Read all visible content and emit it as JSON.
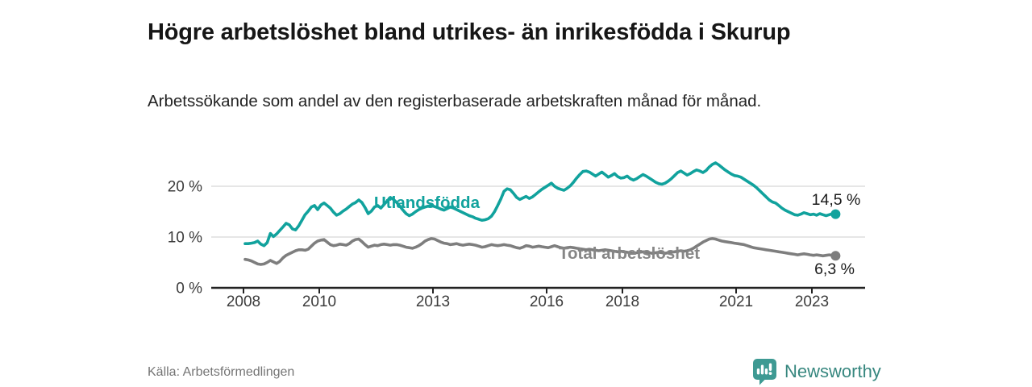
{
  "header": {
    "title": "Högre arbetslöshet bland utrikes- än inrikesfödda i Skurup",
    "subtitle": "Arbetssökande som andel av den registerbaserade arbetskraften månad för månad."
  },
  "footer": {
    "source": "Källa: Arbetsförmedlingen",
    "brand": "Newsworthy"
  },
  "colors": {
    "series_foreign_born": "#11a29d",
    "series_total": "#7e7e7e",
    "series_total_label": "#868686",
    "axis": "#222222",
    "axis_text": "#3c3c3c",
    "gridline": "#d8d8d8",
    "value_label": "#1a1a1a",
    "brand_teal": "#3e9a93"
  },
  "chart_data": {
    "type": "line",
    "title": "Högre arbetslöshet bland utrikes- än inrikesfödda i Skurup",
    "subtitle": "Arbetssökande som andel av den registerbaserade arbetskraften månad för månad.",
    "frequency": "monthly",
    "x_start": "2008-01",
    "x_end": "2023-08",
    "xlim": [
      2007.15,
      2024.4
    ],
    "ylim": [
      0,
      26
    ],
    "grid": "horizontal",
    "legend_position": "inline-labels",
    "x_ticks": [
      {
        "value": 2008,
        "label": "2008"
      },
      {
        "value": 2010,
        "label": "2010"
      },
      {
        "value": 2013,
        "label": "2013"
      },
      {
        "value": 2016,
        "label": "2016"
      },
      {
        "value": 2018,
        "label": "2018"
      },
      {
        "value": 2021,
        "label": "2021"
      },
      {
        "value": 2023,
        "label": "2023"
      }
    ],
    "y_ticks": [
      {
        "value": 0,
        "label": "0 %"
      },
      {
        "value": 10,
        "label": "10 %"
      },
      {
        "value": 20,
        "label": "20 %"
      }
    ],
    "series": [
      {
        "name": "Utlandsfödda",
        "color": "#11a29d",
        "end_label": "14,5 %",
        "last_value": 14.5,
        "values": [
          8.7,
          8.7,
          8.8,
          8.9,
          9.2,
          8.6,
          8.3,
          8.9,
          10.7,
          10.1,
          10.6,
          11.3,
          12.0,
          12.7,
          12.4,
          11.6,
          11.4,
          12.2,
          13.3,
          14.4,
          15.1,
          15.9,
          16.2,
          15.4,
          16.3,
          16.7,
          16.2,
          15.7,
          14.9,
          14.3,
          14.6,
          15.1,
          15.5,
          16.0,
          16.5,
          16.8,
          17.3,
          16.8,
          15.8,
          14.6,
          15.1,
          15.9,
          16.2,
          15.7,
          16.4,
          17.1,
          17.8,
          17.4,
          16.8,
          16.1,
          15.3,
          14.6,
          14.2,
          14.5,
          15.0,
          15.4,
          15.7,
          15.9,
          16.1,
          16.2,
          16.0,
          15.8,
          15.5,
          15.3,
          15.6,
          15.9,
          15.7,
          15.4,
          15.1,
          14.8,
          14.5,
          14.2,
          14.0,
          13.7,
          13.5,
          13.3,
          13.4,
          13.6,
          14.1,
          15.0,
          16.2,
          17.5,
          19.0,
          19.5,
          19.3,
          18.6,
          17.8,
          17.4,
          17.7,
          18.0,
          17.6,
          17.9,
          18.4,
          18.9,
          19.4,
          19.8,
          20.2,
          20.6,
          20.0,
          19.6,
          19.4,
          19.2,
          19.6,
          20.1,
          20.8,
          21.6,
          22.3,
          22.9,
          23.0,
          22.8,
          22.4,
          22.0,
          22.4,
          22.8,
          22.3,
          21.8,
          22.1,
          22.5,
          21.9,
          21.6,
          21.7,
          22.0,
          21.5,
          21.2,
          21.5,
          21.9,
          22.3,
          22.0,
          21.6,
          21.2,
          20.8,
          20.5,
          20.4,
          20.6,
          21.0,
          21.5,
          22.1,
          22.7,
          23.0,
          22.6,
          22.2,
          22.5,
          22.9,
          23.2,
          23.0,
          22.7,
          23.1,
          23.8,
          24.3,
          24.6,
          24.2,
          23.7,
          23.2,
          22.8,
          22.4,
          22.1,
          22.0,
          21.8,
          21.4,
          21.0,
          20.6,
          20.2,
          19.7,
          19.1,
          18.5,
          17.9,
          17.3,
          16.9,
          16.7,
          16.2,
          15.7,
          15.3,
          15.0,
          14.7,
          14.4,
          14.3,
          14.5,
          14.8,
          14.6,
          14.4,
          14.5,
          14.3,
          14.6,
          14.4,
          14.2,
          14.4,
          14.6,
          14.5
        ]
      },
      {
        "name": "Total arbetslöshet",
        "color": "#7e7e7e",
        "end_label": "6,3 %",
        "last_value": 6.3,
        "values": [
          5.6,
          5.5,
          5.3,
          5.0,
          4.7,
          4.6,
          4.7,
          5.0,
          5.4,
          5.1,
          4.8,
          5.2,
          5.9,
          6.4,
          6.7,
          7.0,
          7.3,
          7.5,
          7.5,
          7.4,
          7.6,
          8.2,
          8.8,
          9.2,
          9.4,
          9.5,
          9.0,
          8.5,
          8.3,
          8.4,
          8.6,
          8.5,
          8.4,
          8.7,
          9.2,
          9.5,
          9.6,
          9.1,
          8.5,
          8.0,
          8.2,
          8.4,
          8.3,
          8.5,
          8.6,
          8.5,
          8.4,
          8.5,
          8.5,
          8.4,
          8.2,
          8.0,
          7.9,
          7.8,
          8.0,
          8.3,
          8.7,
          9.2,
          9.5,
          9.7,
          9.6,
          9.3,
          9.0,
          8.8,
          8.7,
          8.5,
          8.6,
          8.7,
          8.5,
          8.4,
          8.5,
          8.6,
          8.5,
          8.4,
          8.2,
          8.0,
          8.1,
          8.3,
          8.5,
          8.4,
          8.3,
          8.4,
          8.5,
          8.4,
          8.3,
          8.1,
          7.9,
          7.8,
          8.0,
          8.3,
          8.2,
          8.0,
          8.1,
          8.2,
          8.1,
          8.0,
          7.9,
          8.1,
          8.3,
          8.1,
          7.9,
          7.8,
          7.9,
          8.0,
          7.9,
          7.8,
          7.7,
          7.6,
          7.5,
          7.6,
          7.5,
          7.4,
          7.3,
          7.4,
          7.5,
          7.4,
          7.3,
          7.2,
          7.1,
          7.2,
          7.1,
          7.0,
          6.9,
          6.8,
          6.9,
          7.0,
          7.1,
          7.0,
          6.9,
          6.8,
          6.9,
          7.0,
          6.9,
          6.8,
          6.9,
          7.0,
          7.1,
          7.2,
          7.3,
          7.2,
          7.3,
          7.5,
          7.8,
          8.2,
          8.6,
          9.0,
          9.3,
          9.6,
          9.7,
          9.6,
          9.4,
          9.2,
          9.1,
          9.0,
          8.9,
          8.8,
          8.7,
          8.6,
          8.5,
          8.3,
          8.1,
          7.9,
          7.8,
          7.7,
          7.6,
          7.5,
          7.4,
          7.3,
          7.2,
          7.1,
          7.0,
          6.9,
          6.8,
          6.7,
          6.6,
          6.5,
          6.6,
          6.7,
          6.6,
          6.5,
          6.4,
          6.5,
          6.4,
          6.3,
          6.4,
          6.5,
          6.4,
          6.3
        ]
      }
    ]
  }
}
